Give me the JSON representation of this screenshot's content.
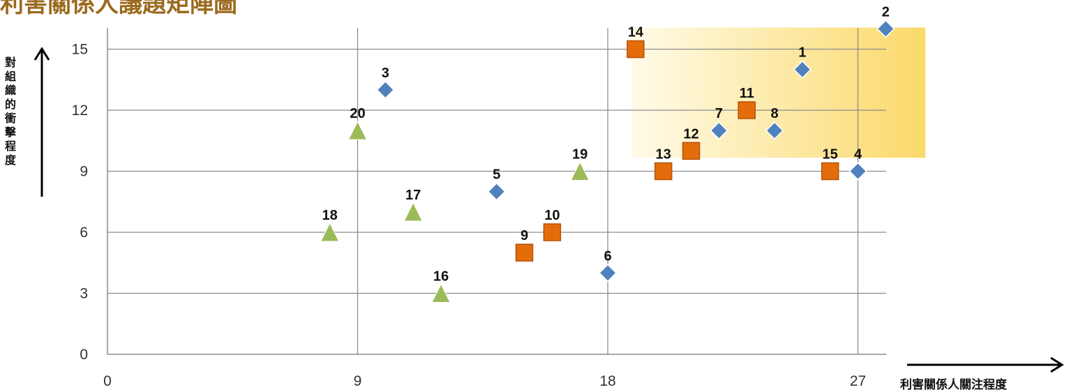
{
  "title": "利害關係人議題矩陣圖",
  "chart_data": {
    "type": "scatter",
    "xlabel": "利害關係人關注程度",
    "ylabel": "對組織的衝擊程度",
    "xlim": [
      0,
      28
    ],
    "ylim": [
      0,
      16
    ],
    "x_ticks": [
      0,
      9,
      18,
      27
    ],
    "y_ticks": [
      0,
      3,
      6,
      9,
      12,
      15
    ],
    "grid": true,
    "highlight_region": {
      "x": [
        19,
        28.2
      ],
      "y": [
        9.8,
        16.2
      ],
      "color": "#fbd96a"
    },
    "series": [
      {
        "marker": "diamond",
        "color": "#4f81bd",
        "points": [
          {
            "label": "1",
            "x": 25,
            "y": 14
          },
          {
            "label": "2",
            "x": 28,
            "y": 16
          },
          {
            "label": "3",
            "x": 10,
            "y": 13
          },
          {
            "label": "4",
            "x": 27,
            "y": 9
          },
          {
            "label": "5",
            "x": 14,
            "y": 8
          },
          {
            "label": "6",
            "x": 18,
            "y": 4
          },
          {
            "label": "7",
            "x": 22,
            "y": 11
          },
          {
            "label": "8",
            "x": 24,
            "y": 11
          }
        ]
      },
      {
        "marker": "square",
        "color": "#e46c0a",
        "points": [
          {
            "label": "9",
            "x": 15,
            "y": 5
          },
          {
            "label": "10",
            "x": 16,
            "y": 6
          },
          {
            "label": "11",
            "x": 23,
            "y": 12
          },
          {
            "label": "12",
            "x": 21,
            "y": 10
          },
          {
            "label": "13",
            "x": 20,
            "y": 9
          },
          {
            "label": "14",
            "x": 19,
            "y": 15
          },
          {
            "label": "15",
            "x": 26,
            "y": 9
          }
        ]
      },
      {
        "marker": "triangle",
        "color": "#9bbb59",
        "points": [
          {
            "label": "16",
            "x": 12,
            "y": 3
          },
          {
            "label": "17",
            "x": 11,
            "y": 7
          },
          {
            "label": "18",
            "x": 8,
            "y": 6
          },
          {
            "label": "19",
            "x": 17,
            "y": 9
          },
          {
            "label": "20",
            "x": 9,
            "y": 11
          }
        ]
      }
    ]
  }
}
